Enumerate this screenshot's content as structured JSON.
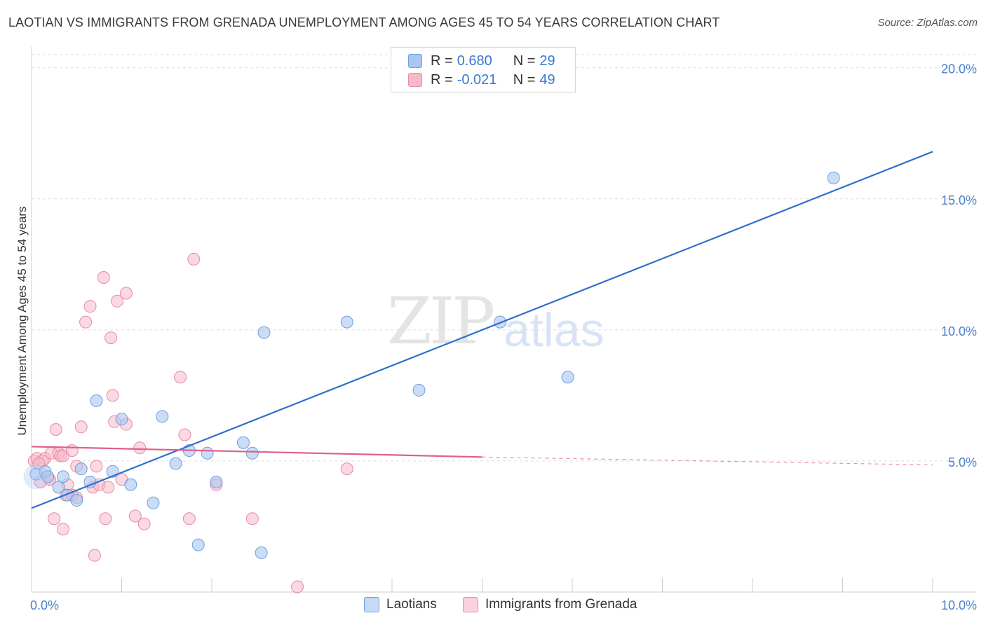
{
  "title": "LAOTIAN VS IMMIGRANTS FROM GRENADA UNEMPLOYMENT AMONG AGES 45 TO 54 YEARS CORRELATION CHART",
  "source": "Source: ZipAtlas.com",
  "watermark": {
    "zip": "ZIP",
    "atlas": "atlas"
  },
  "legend": {
    "row1": {
      "r_label": "R = ",
      "r_value": "0.680",
      "n_label": "N = ",
      "n_value": "29"
    },
    "row2": {
      "r_label": "R = ",
      "r_value": "-0.021",
      "n_label": "N = ",
      "n_value": "49"
    }
  },
  "colors": {
    "blue_fill": "#a9c7f0",
    "blue_stroke": "#6f9ee0",
    "blue_line": "#2f6fd0",
    "pink_fill": "#f6b9cb",
    "pink_stroke": "#e88aa6",
    "pink_line": "#e0608a",
    "grid": "#dddddd",
    "tick_text": "#4a7fd0"
  },
  "chart_data": {
    "type": "scatter",
    "xlabel": "",
    "ylabel": "Unemployment Among Ages 45 to 54 years",
    "xlim": [
      0,
      10
    ],
    "ylim": [
      0,
      20.5
    ],
    "x_tick_labels": [
      "0.0%",
      "10.0%"
    ],
    "y_ticks": [
      5,
      10,
      15,
      20
    ],
    "y_tick_labels": [
      "5.0%",
      "10.0%",
      "15.0%",
      "20.0%"
    ],
    "series": [
      {
        "name": "Laotians",
        "color": "#a9c7f0",
        "points": [
          [
            0.05,
            4.5
          ],
          [
            0.15,
            4.6
          ],
          [
            0.18,
            4.4
          ],
          [
            0.3,
            4.0
          ],
          [
            0.35,
            4.4
          ],
          [
            0.4,
            3.7
          ],
          [
            0.5,
            3.5
          ],
          [
            0.55,
            4.7
          ],
          [
            0.65,
            4.2
          ],
          [
            0.72,
            7.3
          ],
          [
            0.9,
            4.6
          ],
          [
            1.0,
            6.6
          ],
          [
            1.1,
            4.1
          ],
          [
            1.35,
            3.4
          ],
          [
            1.45,
            6.7
          ],
          [
            1.6,
            4.9
          ],
          [
            1.75,
            5.4
          ],
          [
            1.85,
            1.8
          ],
          [
            1.95,
            5.3
          ],
          [
            2.05,
            4.2
          ],
          [
            2.35,
            5.7
          ],
          [
            2.45,
            5.3
          ],
          [
            2.58,
            9.9
          ],
          [
            2.55,
            1.5
          ],
          [
            3.5,
            10.3
          ],
          [
            4.3,
            7.7
          ],
          [
            5.2,
            10.3
          ],
          [
            5.95,
            8.2
          ],
          [
            8.9,
            15.8
          ]
        ],
        "trend": {
          "x": [
            0.0,
            10.0
          ],
          "y": [
            3.2,
            16.8
          ]
        }
      },
      {
        "name": "Immigrants from Grenada",
        "color": "#f6b9cb",
        "points": [
          [
            0.03,
            5.0
          ],
          [
            0.06,
            5.1
          ],
          [
            0.1,
            4.2
          ],
          [
            0.15,
            5.1
          ],
          [
            0.2,
            4.3
          ],
          [
            0.22,
            5.3
          ],
          [
            0.25,
            2.8
          ],
          [
            0.27,
            6.2
          ],
          [
            0.3,
            5.3
          ],
          [
            0.32,
            5.2
          ],
          [
            0.35,
            2.4
          ],
          [
            0.35,
            5.2
          ],
          [
            0.38,
            3.7
          ],
          [
            0.4,
            4.1
          ],
          [
            0.45,
            5.4
          ],
          [
            0.5,
            4.8
          ],
          [
            0.5,
            3.6
          ],
          [
            0.55,
            6.3
          ],
          [
            0.6,
            10.3
          ],
          [
            0.65,
            10.9
          ],
          [
            0.68,
            4.0
          ],
          [
            0.7,
            1.4
          ],
          [
            0.72,
            4.8
          ],
          [
            0.75,
            4.1
          ],
          [
            0.8,
            12.0
          ],
          [
            0.82,
            2.8
          ],
          [
            0.85,
            4.0
          ],
          [
            0.88,
            9.7
          ],
          [
            0.9,
            7.5
          ],
          [
            0.92,
            6.5
          ],
          [
            0.95,
            11.1
          ],
          [
            1.0,
            4.3
          ],
          [
            1.05,
            6.4
          ],
          [
            1.05,
            11.4
          ],
          [
            1.15,
            2.9
          ],
          [
            1.2,
            5.5
          ],
          [
            1.25,
            2.6
          ],
          [
            1.65,
            8.2
          ],
          [
            1.7,
            6.0
          ],
          [
            1.75,
            2.8
          ],
          [
            1.8,
            12.7
          ],
          [
            2.05,
            4.1
          ],
          [
            2.45,
            2.8
          ],
          [
            2.95,
            0.2
          ],
          [
            3.5,
            4.7
          ],
          [
            0.12,
            5.0
          ],
          [
            0.45,
            3.7
          ],
          [
            0.08,
            4.9
          ],
          [
            0.2,
            4.3
          ]
        ],
        "trend": {
          "x": [
            0.0,
            5.0
          ],
          "y": [
            5.55,
            5.15
          ]
        },
        "trend_dashed": {
          "x": [
            5.0,
            10.0
          ],
          "y": [
            5.15,
            4.85
          ]
        }
      }
    ],
    "legend_entries": [
      "Laotians",
      "Immigrants from Grenada"
    ]
  }
}
